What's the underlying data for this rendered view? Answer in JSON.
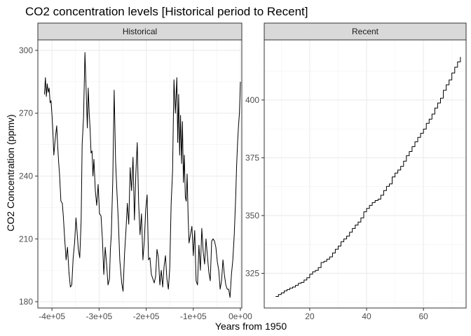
{
  "chart_data": {
    "type": "line",
    "title": "CO2 concentration levels [Historical period to Recent]",
    "xlabel": "Years from 1950",
    "ylabel": "CO2 Concentration (ppmv)",
    "grid": true,
    "legend": "none",
    "line_color": "#000000",
    "panels": [
      {
        "name": "Historical",
        "xlim": [
          -430000,
          3000
        ],
        "ylim": [
          177,
          305
        ],
        "x_ticks": [
          -400000,
          -300000,
          -200000,
          -100000,
          0
        ],
        "x_tick_labels": [
          "-4e+05",
          "-3e+05",
          "-2e+05",
          "-1e+05",
          "0e+00"
        ],
        "y_ticks": [
          180,
          210,
          240,
          270,
          300
        ],
        "y_tick_labels": [
          "180",
          "210",
          "240",
          "270",
          "300"
        ],
        "series": [
          {
            "x": [
              -416000,
              -414000,
              -412000,
              -410000,
              -408000,
              -406000,
              -404000,
              -402000,
              -400000,
              -398000,
              -396000,
              -393000,
              -390000,
              -388000,
              -386000,
              -384000,
              -381000,
              -378000,
              -376000,
              -373000,
              -370000,
              -367000,
              -364000,
              -361000,
              -358000,
              -355000,
              -352000,
              -349000,
              -347000,
              -344000,
              -341000,
              -338000,
              -336000,
              -333000,
              -330000,
              -327000,
              -325000,
              -323000,
              -321000,
              -319000,
              -317000,
              -315000,
              -313000,
              -311000,
              -308000,
              -305000,
              -302000,
              -299000,
              -296000,
              -293000,
              -290000,
              -287000,
              -284000,
              -281000,
              -278000,
              -276000,
              -274000,
              -271000,
              -268000,
              -265000,
              -262000,
              -259000,
              -256000,
              -252000,
              -249000,
              -246000,
              -243000,
              -240000,
              -237000,
              -234000,
              -231000,
              -228000,
              -225000,
              -222000,
              -219000,
              -216000,
              -213000,
              -210000,
              -207000,
              -204000,
              -201000,
              -198000,
              -195000,
              -192000,
              -189000,
              -186000,
              -183000,
              -180000,
              -177000,
              -174000,
              -171000,
              -168000,
              -165000,
              -162000,
              -159000,
              -156000,
              -153000,
              -150000,
              -147000,
              -144000,
              -141000,
              -138000,
              -135000,
              -133000,
              -131000,
              -129000,
              -127000,
              -125000,
              -123000,
              -121000,
              -119000,
              -117000,
              -115000,
              -113000,
              -111000,
              -109000,
              -106000,
              -103000,
              -100000,
              -97000,
              -94000,
              -91000,
              -88000,
              -85000,
              -82000,
              -79000,
              -76000,
              -73000,
              -70000,
              -67000,
              -64000,
              -61000,
              -58000,
              -55000,
              -52000,
              -49000,
              -46000,
              -43000,
              -40000,
              -37000,
              -34000,
              -31000,
              -28000,
              -25000,
              -22000,
              -19000,
              -16000,
              -13000,
              -10000,
              -8000,
              -6000,
              -4000,
              -2000,
              0
            ],
            "y": [
              279,
              287,
              278,
              284,
              280,
              282,
              275,
              276,
              269,
              261,
              250,
              258,
              264,
              255,
              247,
              241,
              228,
              227,
              221,
              210,
              200,
              206,
              194,
              187,
              188,
              201,
              208,
              220,
              214,
              205,
              201,
              219,
              255,
              268,
              299,
              278,
              263,
              282,
              270,
              262,
              251,
              252,
              240,
              248,
              233,
              226,
              236,
              222,
              221,
              210,
              193,
              206,
              198,
              188,
              191,
              205,
              212,
              238,
              281,
              247,
              232,
              218,
              200,
              189,
              185,
              203,
              214,
              227,
              217,
              244,
              233,
              249,
              219,
              241,
              256,
              227,
              212,
              222,
              200,
              209,
              224,
              231,
              200,
              201,
              193,
              191,
              189,
              192,
              205,
              201,
              188,
              195,
              187,
              197,
              202,
              191,
              186,
              196,
              227,
              242,
              286,
              270,
              287,
              256,
              279,
              250,
              269,
              246,
              266,
              237,
              250,
              230,
              228,
              241,
              221,
              208,
              212,
              216,
              202,
              214,
              190,
              188,
              207,
              195,
              215,
              204,
              198,
              210,
              202,
              194,
              190,
              209,
              210,
              209,
              206,
              199,
              195,
              186,
              190,
              200,
              193,
              188,
              186,
              186,
              182,
              193,
              200,
              212,
              230,
              245,
              256,
              264,
              270,
              285
            ]
          }
        ]
      },
      {
        "name": "Recent",
        "xlim": [
          4,
          75
        ],
        "ylim": [
          310,
          426
        ],
        "x_ticks": [
          20,
          40,
          60
        ],
        "x_tick_labels": [
          "20",
          "40",
          "60"
        ],
        "y_ticks": [
          325,
          350,
          375,
          400
        ],
        "y_tick_labels": [
          "325",
          "350",
          "375",
          "400"
        ],
        "series": [
          {
            "step": true,
            "x": [
              8,
              9,
              10,
              11,
              12,
              13,
              14,
              15,
              16,
              17,
              18,
              19,
              20,
              21,
              22,
              23,
              24,
              25,
              26,
              27,
              28,
              29,
              30,
              31,
              32,
              33,
              34,
              35,
              36,
              37,
              38,
              39,
              40,
              41,
              42,
              43,
              44,
              45,
              46,
              47,
              48,
              49,
              50,
              51,
              52,
              53,
              54,
              55,
              56,
              57,
              58,
              59,
              60,
              61,
              62,
              63,
              64,
              65,
              66,
              67,
              68,
              69,
              70,
              71,
              72,
              73
            ],
            "y": [
              315.0,
              315.8,
              316.5,
              317.4,
              318.0,
              318.6,
              319.1,
              319.8,
              320.7,
              321.1,
              322.1,
              323.1,
              324.6,
              325.7,
              326.3,
              327.5,
              329.7,
              330.2,
              331.1,
              332.1,
              333.8,
              335.4,
              336.8,
              338.7,
              339.9,
              341.1,
              342.8,
              344.4,
              345.9,
              347.2,
              349.0,
              351.6,
              353.1,
              354.4,
              355.6,
              356.5,
              357.1,
              358.8,
              360.8,
              362.6,
              363.7,
              366.7,
              368.4,
              369.7,
              371.3,
              373.5,
              375.9,
              377.7,
              379.8,
              381.9,
              383.8,
              385.6,
              387.4,
              389.9,
              391.7,
              393.9,
              396.5,
              398.7,
              400.8,
              404.2,
              406.6,
              408.7,
              411.7,
              414.2,
              416.5,
              418.6
            ]
          }
        ]
      }
    ]
  }
}
